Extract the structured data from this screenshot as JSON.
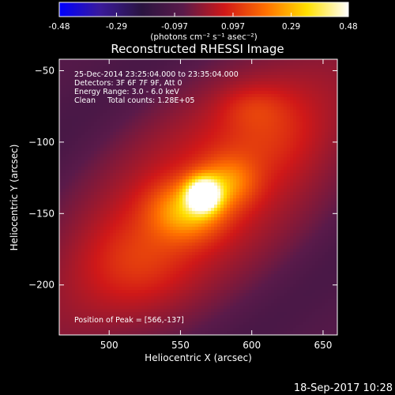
{
  "colorbar": {
    "tick_labels": [
      "-0.48",
      "-0.29",
      "-0.097",
      "0.097",
      "0.29",
      "0.48"
    ],
    "tick_values": [
      -0.48,
      -0.29,
      -0.097,
      0.097,
      0.29,
      0.48
    ],
    "range": [
      -0.48,
      0.48
    ],
    "unit_label": "(photons cm⁻² s⁻¹ asec⁻²)"
  },
  "title": "Reconstructed RHESSI Image",
  "annotations": {
    "line1": "25-Dec-2014 23:25:04.000 to 23:35:04.000",
    "line2": "Detectors: 3F 6F 7F 9F, Att 0",
    "line3": "Energy Range: 3.0 - 6.0 keV",
    "line4": "Clean     Total counts: 1.28E+05",
    "peak": "Position of Peak = [566,-137]"
  },
  "footer_date": "18-Sep-2017 10:28",
  "colors": {
    "background": "#000000",
    "colormap": [
      "#0000ff",
      "#3a1a9a",
      "#2a1440",
      "#5a1a4a",
      "#d01818",
      "#ff7000",
      "#ffe000",
      "#ffffff"
    ]
  },
  "chart_data": {
    "type": "heatmap",
    "xlabel": "Heliocentric X (arcsec)",
    "ylabel": "Heliocentric Y (arcsec)",
    "xlim": [
      465,
      660
    ],
    "ylim": [
      -235,
      -42
    ],
    "x_ticks": [
      500,
      550,
      600,
      650
    ],
    "y_ticks": [
      -50,
      -100,
      -150,
      -200
    ],
    "x_tick_labels": [
      "500",
      "550",
      "600",
      "650"
    ],
    "y_tick_labels": [
      "−50",
      "−100",
      "−150",
      "−200"
    ],
    "peak_position": [
      566,
      -137
    ],
    "sources": [
      {
        "x": 566,
        "y": -137,
        "amp": 0.48,
        "sx": 8,
        "sy": 8
      },
      {
        "x": 555,
        "y": -148,
        "amp": 0.22,
        "sx": 18,
        "sy": 14
      },
      {
        "x": 583,
        "y": -128,
        "amp": 0.16,
        "sx": 14,
        "sy": 12
      },
      {
        "x": 520,
        "y": -185,
        "amp": 0.07,
        "sx": 26,
        "sy": 22
      },
      {
        "x": 610,
        "y": -90,
        "amp": 0.06,
        "sx": 24,
        "sy": 22
      },
      {
        "x": 600,
        "y": -75,
        "amp": 0.05,
        "sx": 16,
        "sy": 10
      }
    ],
    "ridge_angle_deg": 40,
    "ridge_level": 0.12,
    "background_level": -0.09
  }
}
